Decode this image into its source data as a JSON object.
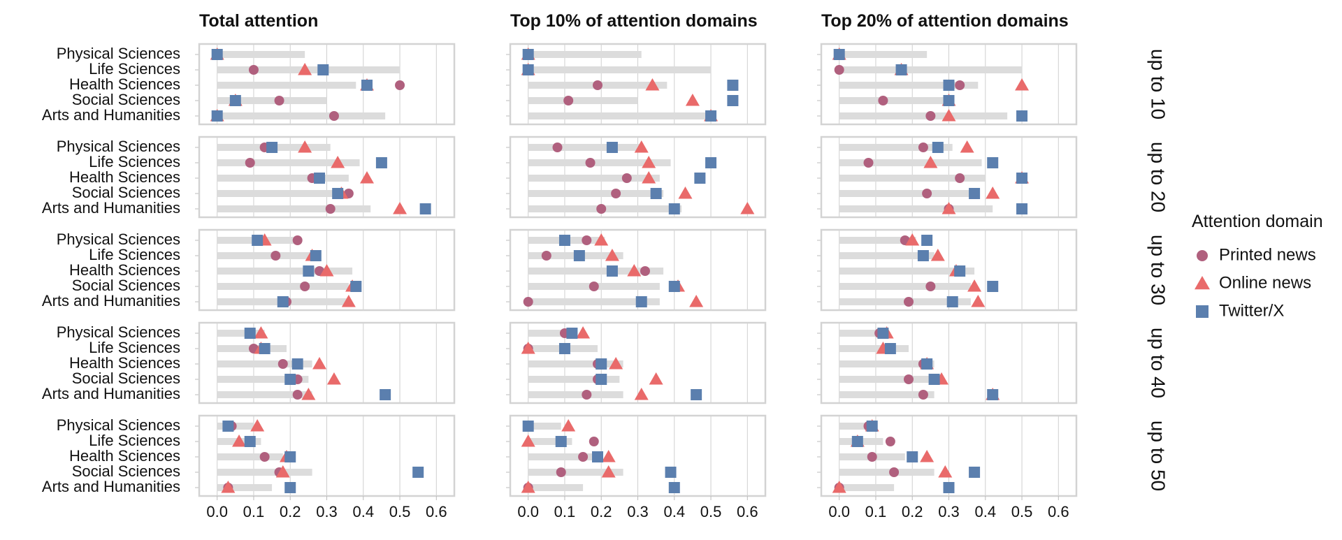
{
  "chart_data": {
    "type": "scatter",
    "panel_titles": [
      "Total attention",
      "Top 10% of attention domains",
      "Top 20% of attention domains"
    ],
    "row_strips": [
      "up to 10",
      "up to 20",
      "up to 30",
      "up to 40",
      "up to 50"
    ],
    "categories": [
      "Physical Sciences",
      "Life Sciences",
      "Health Sciences",
      "Social Sciences",
      "Arts and Humanities"
    ],
    "x_ticks": [
      "0.0",
      "0.1",
      "0.2",
      "0.3",
      "0.4",
      "0.5",
      "0.6"
    ],
    "xlim": [
      -0.03,
      0.63
    ],
    "grid": true,
    "legend": {
      "title": "Attention domain",
      "position": "right",
      "items": [
        {
          "label": "Printed news",
          "shape": "circle",
          "color": "#b0607e"
        },
        {
          "label": "Online news",
          "shape": "triangle",
          "color": "#e96a6a"
        },
        {
          "label": "Twitter/X",
          "shape": "square",
          "color": "#5b7fae"
        }
      ]
    },
    "colors": {
      "printed": "#b0607e",
      "online": "#e96a6a",
      "twitter": "#5b7fae",
      "bar": "#dcdcdc",
      "panel_border": "#d3d3d3",
      "gridline": "#cfcfcf"
    },
    "series_keys": [
      "printed",
      "online",
      "twitter"
    ],
    "panels": [
      [
        {
          "bars": [
            0.24,
            0.5,
            0.38,
            0.3,
            0.46
          ],
          "printed": [
            0.0,
            0.1,
            0.5,
            0.17,
            0.32
          ],
          "online": [
            0.0,
            0.24,
            0.41,
            0.05,
            0.0
          ],
          "twitter": [
            0.0,
            0.29,
            0.41,
            0.05,
            0.0
          ]
        },
        {
          "bars": [
            0.31,
            0.5,
            0.38,
            0.3,
            0.5
          ],
          "printed": [
            0.0,
            0.0,
            0.19,
            0.11,
            0.5
          ],
          "online": [
            0.0,
            0.0,
            0.34,
            0.45,
            0.5
          ],
          "twitter": [
            0.0,
            0.0,
            0.56,
            0.56,
            0.5
          ]
        },
        {
          "bars": [
            0.24,
            0.5,
            0.38,
            0.3,
            0.46
          ],
          "printed": [
            0.0,
            0.0,
            0.33,
            0.12,
            0.25
          ],
          "online": [
            0.0,
            0.17,
            0.5,
            0.3,
            0.3
          ],
          "twitter": [
            0.0,
            0.17,
            0.3,
            0.3,
            0.5
          ]
        }
      ],
      [
        {
          "bars": [
            0.31,
            0.39,
            0.36,
            0.33,
            0.42
          ],
          "printed": [
            0.13,
            0.09,
            0.26,
            0.36,
            0.31
          ],
          "online": [
            0.24,
            0.33,
            0.41,
            0.34,
            0.5
          ],
          "twitter": [
            0.15,
            0.45,
            0.28,
            0.33,
            0.57
          ]
        },
        {
          "bars": [
            0.31,
            0.39,
            0.36,
            0.37,
            0.42
          ],
          "printed": [
            0.08,
            0.17,
            0.27,
            0.24,
            0.2
          ],
          "online": [
            0.31,
            0.33,
            0.33,
            0.43,
            0.6
          ],
          "twitter": [
            0.23,
            0.5,
            0.47,
            0.35,
            0.4
          ]
        },
        {
          "bars": [
            0.31,
            0.39,
            0.4,
            0.37,
            0.42
          ],
          "printed": [
            0.23,
            0.08,
            0.33,
            0.24,
            0.3
          ],
          "online": [
            0.35,
            0.25,
            0.5,
            0.42,
            0.3
          ],
          "twitter": [
            0.27,
            0.42,
            0.5,
            0.37,
            0.5
          ]
        }
      ],
      [
        {
          "bars": [
            0.21,
            0.26,
            0.37,
            0.36,
            0.36
          ],
          "printed": [
            0.22,
            0.16,
            0.28,
            0.24,
            0.19
          ],
          "online": [
            0.13,
            0.26,
            0.3,
            0.37,
            0.36
          ],
          "twitter": [
            0.11,
            0.27,
            0.25,
            0.38,
            0.18
          ]
        },
        {
          "bars": [
            0.21,
            0.26,
            0.37,
            0.36,
            0.36
          ],
          "printed": [
            0.16,
            0.05,
            0.32,
            0.18,
            0.0
          ],
          "online": [
            0.2,
            0.23,
            0.29,
            0.41,
            0.46
          ],
          "twitter": [
            0.1,
            0.14,
            0.23,
            0.4,
            0.31
          ]
        },
        {
          "bars": [
            0.21,
            0.26,
            0.37,
            0.36,
            0.36
          ],
          "printed": [
            0.18,
            0.23,
            0.33,
            0.25,
            0.19
          ],
          "online": [
            0.2,
            0.27,
            0.32,
            0.37,
            0.38
          ],
          "twitter": [
            0.24,
            0.23,
            0.33,
            0.42,
            0.31
          ]
        }
      ],
      [
        {
          "bars": [
            0.13,
            0.19,
            0.26,
            0.25,
            0.26
          ],
          "printed": [
            0.09,
            0.1,
            0.18,
            0.22,
            0.22
          ],
          "online": [
            0.12,
            0.12,
            0.28,
            0.32,
            0.25
          ],
          "twitter": [
            0.09,
            0.13,
            0.22,
            0.2,
            0.46
          ]
        },
        {
          "bars": [
            0.13,
            0.19,
            0.26,
            0.25,
            0.26
          ],
          "printed": [
            0.1,
            0.0,
            0.19,
            0.19,
            0.16
          ],
          "online": [
            0.15,
            0.0,
            0.24,
            0.35,
            0.31
          ],
          "twitter": [
            0.12,
            0.1,
            0.2,
            0.2,
            0.46
          ]
        },
        {
          "bars": [
            0.13,
            0.19,
            0.26,
            0.25,
            0.26
          ],
          "printed": [
            0.11,
            0.14,
            0.23,
            0.19,
            0.23
          ],
          "online": [
            0.13,
            0.12,
            0.24,
            0.28,
            0.42
          ],
          "twitter": [
            0.12,
            0.14,
            0.24,
            0.26,
            0.42
          ]
        }
      ],
      [
        {
          "bars": [
            0.1,
            0.12,
            0.18,
            0.26,
            0.15
          ],
          "printed": [
            0.04,
            0.09,
            0.13,
            0.17,
            0.03
          ],
          "online": [
            0.11,
            0.06,
            0.19,
            0.18,
            0.03
          ],
          "twitter": [
            0.03,
            0.09,
            0.2,
            0.55,
            0.2
          ]
        },
        {
          "bars": [
            0.09,
            0.12,
            0.18,
            0.26,
            0.15
          ],
          "printed": [
            0.0,
            0.18,
            0.15,
            0.09,
            0.0
          ],
          "online": [
            0.11,
            0.0,
            0.22,
            0.22,
            0.0
          ],
          "twitter": [
            0.0,
            0.09,
            0.19,
            0.39,
            0.4
          ]
        },
        {
          "bars": [
            0.09,
            0.12,
            0.18,
            0.26,
            0.15
          ],
          "printed": [
            0.08,
            0.14,
            0.09,
            0.15,
            0.0
          ],
          "online": [
            0.09,
            0.05,
            0.24,
            0.29,
            0.0
          ],
          "twitter": [
            0.09,
            0.05,
            0.2,
            0.37,
            0.3
          ]
        }
      ]
    ]
  }
}
